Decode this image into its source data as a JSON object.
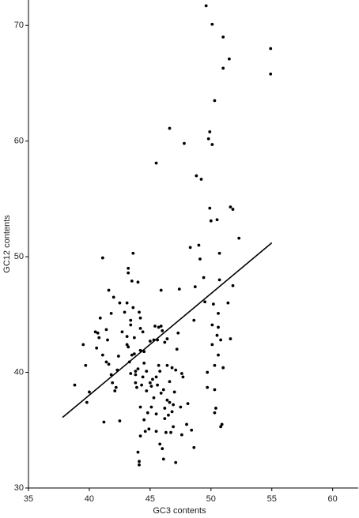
{
  "chart_data": {
    "type": "scatter",
    "x_label": "GC3 contents",
    "y_label": "GC12 contents",
    "xlim": [
      35,
      62.1
    ],
    "ylim": [
      30,
      72.2
    ],
    "xticks": [
      35,
      40,
      45,
      50,
      55,
      60
    ],
    "yticks": [
      30,
      40,
      50,
      60,
      70
    ],
    "series": [
      {
        "type": "scatter",
        "color": "#000000",
        "x": [
          38.8,
          39.5,
          39.7,
          40.0,
          39.8,
          40.5,
          40.7,
          40.6,
          40.8,
          40.9,
          41.1,
          41.2,
          41.1,
          41.4,
          41.5,
          41.4,
          41.6,
          41.6,
          41.8,
          41.8,
          41.9,
          42.0,
          42.1,
          42.2,
          42.3,
          42.4,
          42.5,
          42.5,
          42.7,
          42.9,
          43.1,
          43.2,
          43.2,
          43.1,
          43.1,
          43.2,
          43.3,
          43.4,
          43.4,
          43.4,
          43.5,
          43.6,
          43.5,
          43.6,
          43.7,
          43.7,
          43.8,
          43.8,
          43.8,
          43.9,
          44.0,
          44.0,
          44.0,
          44.1,
          44.1,
          44.1,
          44.2,
          44.2,
          44.2,
          44.2,
          44.2,
          44.3,
          44.4,
          44.4,
          44.5,
          44.5,
          44.5,
          44.6,
          44.7,
          44.7,
          44.8,
          44.9,
          45.0,
          45.0,
          45.1,
          45.1,
          45.2,
          45.3,
          45.3,
          45.4,
          45.5,
          45.5,
          45.5,
          45.5,
          45.6,
          45.6,
          45.7,
          45.7,
          45.8,
          45.8,
          45.9,
          45.9,
          45.9,
          46.0,
          46.0,
          46.1,
          46.1,
          46.2,
          46.2,
          46.2,
          46.3,
          46.4,
          46.4,
          46.4,
          46.5,
          46.6,
          46.6,
          46.6,
          46.7,
          46.8,
          46.8,
          46.9,
          46.9,
          47.0,
          47.1,
          47.1,
          47.2,
          47.3,
          47.4,
          47.5,
          47.6,
          47.7,
          47.8,
          47.6,
          48.0,
          48.1,
          48.3,
          48.4,
          48.6,
          48.6,
          48.7,
          48.8,
          49.0,
          49.1,
          49.2,
          49.4,
          49.5,
          49.6,
          49.7,
          49.7,
          49.8,
          49.9,
          49.9,
          50.0,
          50.1,
          50.1,
          50.1,
          50.2,
          50.1,
          50.3,
          50.3,
          50.3,
          50.3,
          50.4,
          50.5,
          50.5,
          50.6,
          50.6,
          50.6,
          50.7,
          50.7,
          50.8,
          50.8,
          50.9,
          51.0,
          51.0,
          51.0,
          51.4,
          51.5,
          51.6,
          51.6,
          51.8,
          51.8,
          52.3,
          54.9,
          54.9
        ],
        "values": [
          38.9,
          42.4,
          40.6,
          38.3,
          37.4,
          43.5,
          43.4,
          42.1,
          43.0,
          44.7,
          49.9,
          35.7,
          41.5,
          43.7,
          42.8,
          40.9,
          40.7,
          47.1,
          45.1,
          39.8,
          39.1,
          46.5,
          38.4,
          38.7,
          40.2,
          41.4,
          46.0,
          35.8,
          43.5,
          45.2,
          46.0,
          48.6,
          49.0,
          43.1,
          42.4,
          42.2,
          40.9,
          39.9,
          44.5,
          44.1,
          47.9,
          50.3,
          41.5,
          45.6,
          43.0,
          41.6,
          40.1,
          39.8,
          39.1,
          38.7,
          47.8,
          40.3,
          33.1,
          32.3,
          32.0,
          45.2,
          44.7,
          43.8,
          41.9,
          37.0,
          34.5,
          38.9,
          43.5,
          39.6,
          35.9,
          41.8,
          40.8,
          34.9,
          38.4,
          40.1,
          36.5,
          35.1,
          39.1,
          42.7,
          37.0,
          38.8,
          39.4,
          42.8,
          37.8,
          44.0,
          58.1,
          36.4,
          34.9,
          39.6,
          38.9,
          42.8,
          43.9,
          40.6,
          40.1,
          33.8,
          47.1,
          44.0,
          38.2,
          33.4,
          43.6,
          32.5,
          38.5,
          36.0,
          36.9,
          42.6,
          34.8,
          37.6,
          42.9,
          40.6,
          36.3,
          37.4,
          61.1,
          39.2,
          34.8,
          40.4,
          36.6,
          37.2,
          35.3,
          38.3,
          40.2,
          32.2,
          42.0,
          43.4,
          47.2,
          37.0,
          39.9,
          39.6,
          59.8,
          34.6,
          35.5,
          37.3,
          50.8,
          35.0,
          33.5,
          44.5,
          47.4,
          57.0,
          51.0,
          49.8,
          56.7,
          48.2,
          46.1,
          71.7,
          40.0,
          38.7,
          60.2,
          54.2,
          60.8,
          53.1,
          59.7,
          44.1,
          70.1,
          45.9,
          42.4,
          38.5,
          63.5,
          36.5,
          40.6,
          36.9,
          53.2,
          43.2,
          45.1,
          43.9,
          41.5,
          50.3,
          48.0,
          42.8,
          35.3,
          35.5,
          66.3,
          40.4,
          69.0,
          46.0,
          67.1,
          54.3,
          42.9,
          54.1,
          47.5,
          51.6,
          68.0,
          65.8
        ]
      },
      {
        "type": "line",
        "color": "#000000",
        "x": [
          37.8,
          55
        ],
        "values": [
          36.1,
          51.2
        ]
      }
    ]
  }
}
